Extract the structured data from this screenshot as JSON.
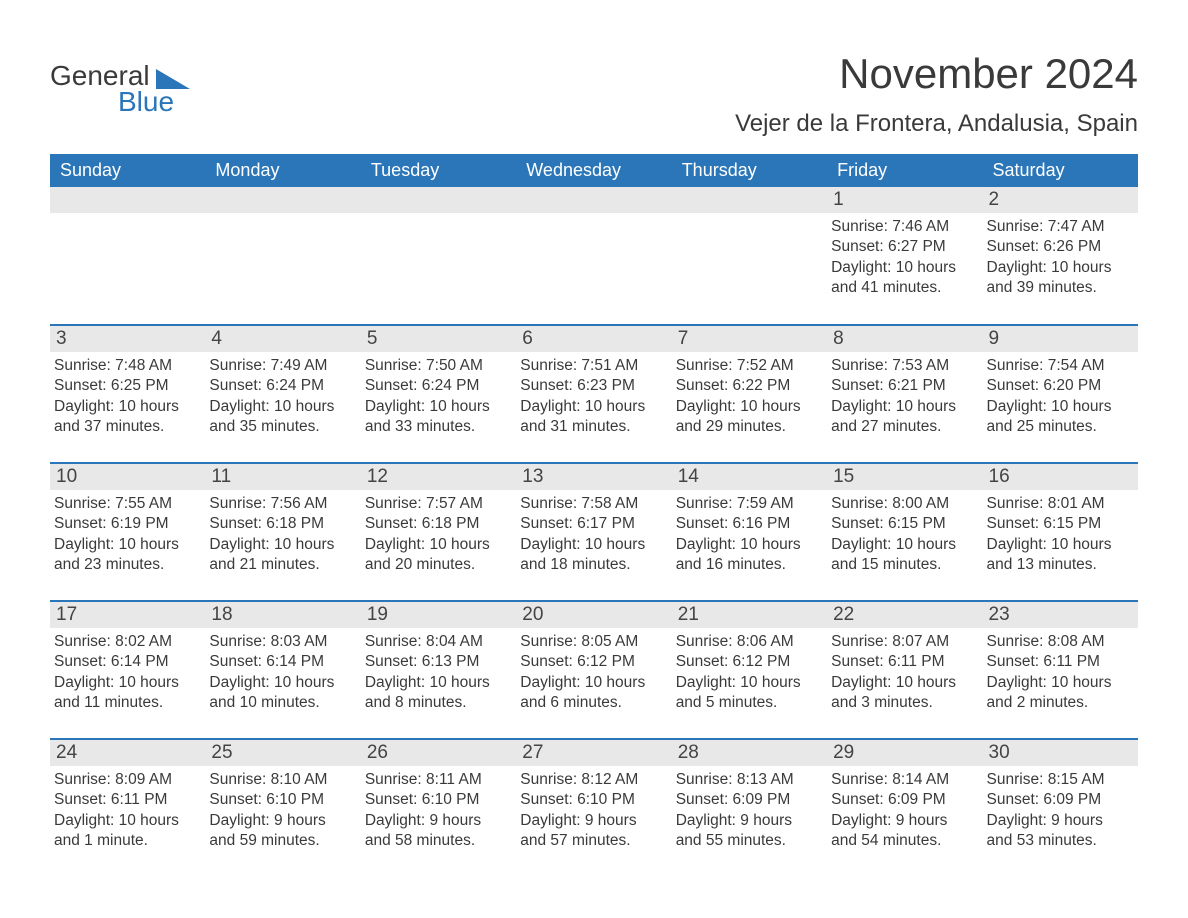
{
  "logo": {
    "text1": "General",
    "text2": "Blue",
    "shape_color": "#2a76b8"
  },
  "title": "November 2024",
  "location": "Vejer de la Frontera, Andalusia, Spain",
  "colors": {
    "header_bg": "#2a76b8",
    "header_text": "#ffffff",
    "daynum_bg": "#e8e8e8",
    "body_text": "#3a3a3a",
    "row_border": "#2a76b8",
    "page_bg": "#ffffff"
  },
  "weekdays": [
    "Sunday",
    "Monday",
    "Tuesday",
    "Wednesday",
    "Thursday",
    "Friday",
    "Saturday"
  ],
  "weeks": [
    [
      null,
      null,
      null,
      null,
      null,
      {
        "num": "1",
        "sunrise": "7:46 AM",
        "sunset": "6:27 PM",
        "daylight": "10 hours and 41 minutes."
      },
      {
        "num": "2",
        "sunrise": "7:47 AM",
        "sunset": "6:26 PM",
        "daylight": "10 hours and 39 minutes."
      }
    ],
    [
      {
        "num": "3",
        "sunrise": "7:48 AM",
        "sunset": "6:25 PM",
        "daylight": "10 hours and 37 minutes."
      },
      {
        "num": "4",
        "sunrise": "7:49 AM",
        "sunset": "6:24 PM",
        "daylight": "10 hours and 35 minutes."
      },
      {
        "num": "5",
        "sunrise": "7:50 AM",
        "sunset": "6:24 PM",
        "daylight": "10 hours and 33 minutes."
      },
      {
        "num": "6",
        "sunrise": "7:51 AM",
        "sunset": "6:23 PM",
        "daylight": "10 hours and 31 minutes."
      },
      {
        "num": "7",
        "sunrise": "7:52 AM",
        "sunset": "6:22 PM",
        "daylight": "10 hours and 29 minutes."
      },
      {
        "num": "8",
        "sunrise": "7:53 AM",
        "sunset": "6:21 PM",
        "daylight": "10 hours and 27 minutes."
      },
      {
        "num": "9",
        "sunrise": "7:54 AM",
        "sunset": "6:20 PM",
        "daylight": "10 hours and 25 minutes."
      }
    ],
    [
      {
        "num": "10",
        "sunrise": "7:55 AM",
        "sunset": "6:19 PM",
        "daylight": "10 hours and 23 minutes."
      },
      {
        "num": "11",
        "sunrise": "7:56 AM",
        "sunset": "6:18 PM",
        "daylight": "10 hours and 21 minutes."
      },
      {
        "num": "12",
        "sunrise": "7:57 AM",
        "sunset": "6:18 PM",
        "daylight": "10 hours and 20 minutes."
      },
      {
        "num": "13",
        "sunrise": "7:58 AM",
        "sunset": "6:17 PM",
        "daylight": "10 hours and 18 minutes."
      },
      {
        "num": "14",
        "sunrise": "7:59 AM",
        "sunset": "6:16 PM",
        "daylight": "10 hours and 16 minutes."
      },
      {
        "num": "15",
        "sunrise": "8:00 AM",
        "sunset": "6:15 PM",
        "daylight": "10 hours and 15 minutes."
      },
      {
        "num": "16",
        "sunrise": "8:01 AM",
        "sunset": "6:15 PM",
        "daylight": "10 hours and 13 minutes."
      }
    ],
    [
      {
        "num": "17",
        "sunrise": "8:02 AM",
        "sunset": "6:14 PM",
        "daylight": "10 hours and 11 minutes."
      },
      {
        "num": "18",
        "sunrise": "8:03 AM",
        "sunset": "6:14 PM",
        "daylight": "10 hours and 10 minutes."
      },
      {
        "num": "19",
        "sunrise": "8:04 AM",
        "sunset": "6:13 PM",
        "daylight": "10 hours and 8 minutes."
      },
      {
        "num": "20",
        "sunrise": "8:05 AM",
        "sunset": "6:12 PM",
        "daylight": "10 hours and 6 minutes."
      },
      {
        "num": "21",
        "sunrise": "8:06 AM",
        "sunset": "6:12 PM",
        "daylight": "10 hours and 5 minutes."
      },
      {
        "num": "22",
        "sunrise": "8:07 AM",
        "sunset": "6:11 PM",
        "daylight": "10 hours and 3 minutes."
      },
      {
        "num": "23",
        "sunrise": "8:08 AM",
        "sunset": "6:11 PM",
        "daylight": "10 hours and 2 minutes."
      }
    ],
    [
      {
        "num": "24",
        "sunrise": "8:09 AM",
        "sunset": "6:11 PM",
        "daylight": "10 hours and 1 minute."
      },
      {
        "num": "25",
        "sunrise": "8:10 AM",
        "sunset": "6:10 PM",
        "daylight": "9 hours and 59 minutes."
      },
      {
        "num": "26",
        "sunrise": "8:11 AM",
        "sunset": "6:10 PM",
        "daylight": "9 hours and 58 minutes."
      },
      {
        "num": "27",
        "sunrise": "8:12 AM",
        "sunset": "6:10 PM",
        "daylight": "9 hours and 57 minutes."
      },
      {
        "num": "28",
        "sunrise": "8:13 AM",
        "sunset": "6:09 PM",
        "daylight": "9 hours and 55 minutes."
      },
      {
        "num": "29",
        "sunrise": "8:14 AM",
        "sunset": "6:09 PM",
        "daylight": "9 hours and 54 minutes."
      },
      {
        "num": "30",
        "sunrise": "8:15 AM",
        "sunset": "6:09 PM",
        "daylight": "9 hours and 53 minutes."
      }
    ]
  ],
  "labels": {
    "sunrise": "Sunrise:",
    "sunset": "Sunset:",
    "daylight": "Daylight:"
  }
}
